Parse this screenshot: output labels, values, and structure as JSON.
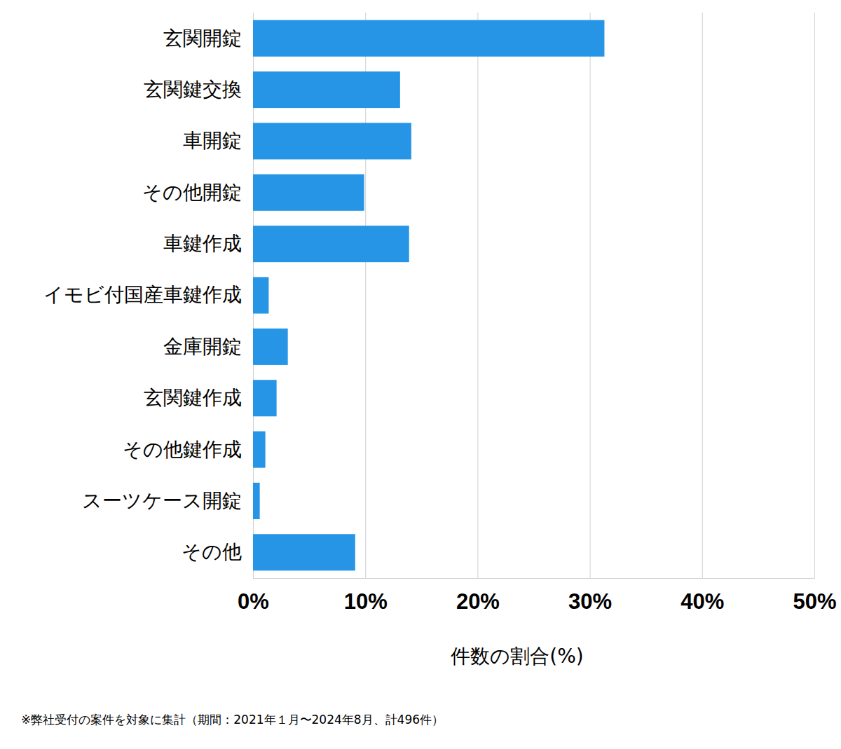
{
  "chart_data": {
    "type": "bar",
    "orientation": "horizontal",
    "categories": [
      "玄関開錠",
      "玄関鍵交換",
      "車開錠",
      "その他開錠",
      "車鍵作成",
      "イモビ付国産車鍵作成",
      "金庫開錠",
      "玄関鍵作成",
      "その他鍵作成",
      "スーツケース開錠",
      "その他"
    ],
    "values": [
      31.3,
      13.1,
      14.1,
      9.9,
      13.9,
      1.4,
      3.1,
      2.1,
      1.1,
      0.6,
      9.1
    ],
    "color": "#2695e6",
    "xlabel": "件数の割合(%)",
    "xlim": [
      0,
      50
    ],
    "xticks": [
      {
        "value": 0,
        "label": "0%"
      },
      {
        "value": 10,
        "label": "10%"
      },
      {
        "value": 20,
        "label": "20%"
      },
      {
        "value": 30,
        "label": "30%"
      },
      {
        "value": 40,
        "label": "40%"
      },
      {
        "value": 50,
        "label": "50%"
      }
    ],
    "grid": true,
    "footnote": "※弊社受付の案件を対象に集計（期間：2021年１月〜2024年8月、計496件）"
  }
}
